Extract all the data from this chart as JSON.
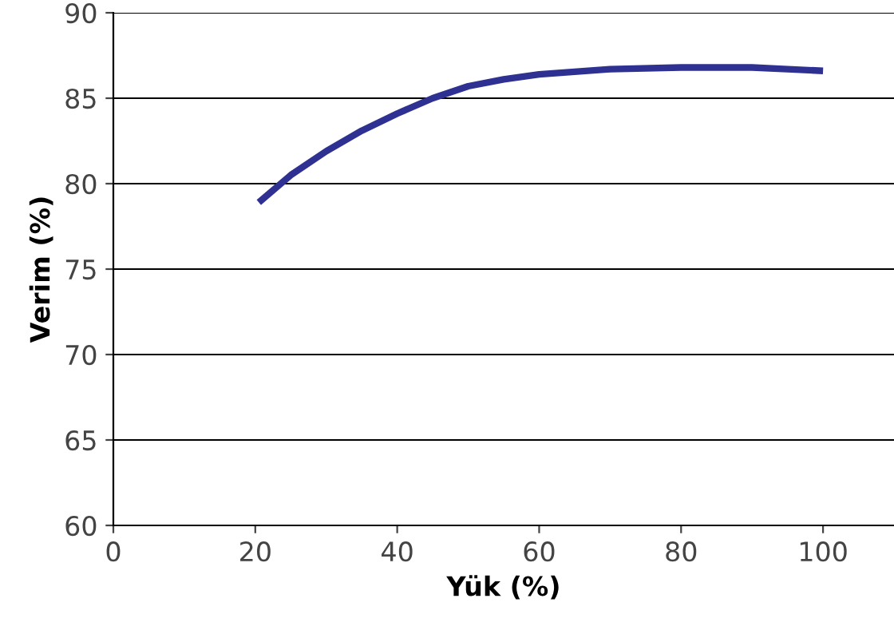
{
  "chart_data": {
    "type": "line",
    "xlabel": "Yük (%)",
    "ylabel": "Verim (%)",
    "x": [
      20.5,
      25,
      30,
      35,
      40,
      45,
      50,
      55,
      60,
      70,
      80,
      90,
      95,
      100
    ],
    "series": [
      {
        "color": "#2e3192",
        "values": [
          78.9,
          80.5,
          81.9,
          83.1,
          84.1,
          85.0,
          85.7,
          86.1,
          86.4,
          86.7,
          86.8,
          86.8,
          86.7,
          86.6
        ]
      }
    ],
    "xlim": [
      0,
      110
    ],
    "xticks": [
      0,
      20,
      40,
      60,
      80,
      100
    ],
    "ylim": [
      60,
      90
    ],
    "yticks": [
      60,
      65,
      70,
      75,
      80,
      85,
      90
    ],
    "grid": "y",
    "legend": false,
    "marker": "none",
    "line_style": "solid"
  }
}
